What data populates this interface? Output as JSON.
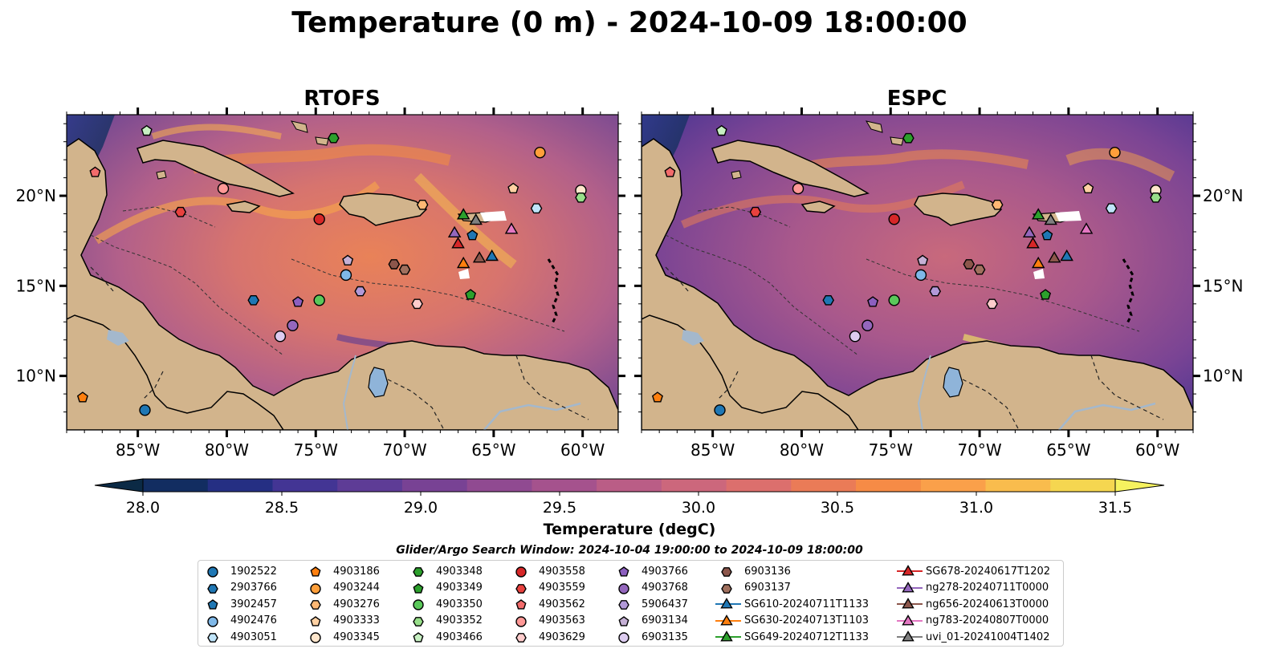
{
  "title": "Temperature (0 m) - 2024-10-09 18:00:00",
  "panels": [
    {
      "title": "RTOFS"
    },
    {
      "title": "ESPC"
    }
  ],
  "map": {
    "lon_range": [
      -89,
      -58
    ],
    "lat_range": [
      7,
      24.5
    ],
    "x_ticks": [
      {
        "lon": -85,
        "label": "85°W"
      },
      {
        "lon": -80,
        "label": "80°W"
      },
      {
        "lon": -75,
        "label": "75°W"
      },
      {
        "lon": -70,
        "label": "70°W"
      },
      {
        "lon": -65,
        "label": "65°W"
      },
      {
        "lon": -60,
        "label": "60°W"
      }
    ],
    "y_ticks": [
      {
        "lat": 20,
        "label": "20°N"
      },
      {
        "lat": 15,
        "label": "15°N"
      },
      {
        "lat": 10,
        "label": "10°N"
      }
    ],
    "colors": {
      "ocean_warm": "#e08060",
      "ocean_mid": "#a4608c",
      "ocean_cool": "#4a3e8f",
      "ocean_deep": "#12264a",
      "land": "#d2b48c",
      "lake": "#8fb4d9",
      "river": "#a4b8cc"
    }
  },
  "colorbar": {
    "label": "Temperature (degC)",
    "ticks": [
      "28.0",
      "28.5",
      "29.0",
      "29.5",
      "30.0",
      "30.5",
      "31.0",
      "31.5"
    ],
    "min": 28.0,
    "max": 31.5,
    "colors": [
      "#0b2a45",
      "#122d61",
      "#252f83",
      "#433594",
      "#5e3c96",
      "#784294",
      "#904a91",
      "#a5528d",
      "#ba5d86",
      "#cc677c",
      "#dc6f6d",
      "#ea7b57",
      "#f68b46",
      "#faa04a",
      "#f9bc4d",
      "#f5d650",
      "#f6f25f"
    ]
  },
  "search_window": "Glider/Argo Search Window: 2024-10-04 19:00:00 to 2024-10-09 18:00:00",
  "platforms": [
    {
      "name": "1902522",
      "shape": "circle",
      "color": "#1f77b4",
      "lon": -84.6,
      "lat": 8.1
    },
    {
      "name": "2903766",
      "shape": "hexagon",
      "color": "#1f77b4",
      "lon": -78.5,
      "lat": 14.2
    },
    {
      "name": "3902457",
      "shape": "pentagon",
      "color": "#1f77b4",
      "lon": -66.2,
      "lat": 17.8
    },
    {
      "name": "4902476",
      "shape": "circle",
      "color": "#7fb8e8",
      "lon": -73.3,
      "lat": 15.6
    },
    {
      "name": "4903051",
      "shape": "hexagon",
      "color": "#bfe4fa",
      "lon": -62.6,
      "lat": 19.3
    },
    {
      "name": "4903186",
      "shape": "pentagon",
      "color": "#ff7f0e",
      "lon": -88.1,
      "lat": 8.8
    },
    {
      "name": "4903244",
      "shape": "circle",
      "color": "#ff9f3a",
      "lon": -62.4,
      "lat": 22.4
    },
    {
      "name": "4903276",
      "shape": "hexagon",
      "color": "#ffb874",
      "lon": -69.0,
      "lat": 19.5
    },
    {
      "name": "4903333",
      "shape": "pentagon",
      "color": "#ffd1a3",
      "lon": -63.9,
      "lat": 20.4
    },
    {
      "name": "4903345",
      "shape": "circle",
      "color": "#ffe6cc",
      "lon": -60.1,
      "lat": 20.3
    },
    {
      "name": "4903348",
      "shape": "hexagon",
      "color": "#2ca02c",
      "lon": -74.0,
      "lat": 23.2
    },
    {
      "name": "4903349",
      "shape": "pentagon",
      "color": "#2ca02c",
      "lon": -66.3,
      "lat": 14.5
    },
    {
      "name": "4903350",
      "shape": "circle",
      "color": "#5ac85a",
      "lon": -74.8,
      "lat": 14.2
    },
    {
      "name": "4903352",
      "shape": "hexagon",
      "color": "#98df8a",
      "lon": -60.1,
      "lat": 19.9
    },
    {
      "name": "4903466",
      "shape": "pentagon",
      "color": "#c7f0c2",
      "lon": -84.5,
      "lat": 23.6
    },
    {
      "name": "4903558",
      "shape": "circle",
      "color": "#d62728",
      "lon": -74.8,
      "lat": 18.7
    },
    {
      "name": "4903559",
      "shape": "hexagon",
      "color": "#e8413e",
      "lon": -82.6,
      "lat": 19.1
    },
    {
      "name": "4903562",
      "shape": "pentagon",
      "color": "#f26b6b",
      "lon": -87.4,
      "lat": 21.3
    },
    {
      "name": "4903563",
      "shape": "circle",
      "color": "#ff9896",
      "lon": -80.2,
      "lat": 20.4
    },
    {
      "name": "4903629",
      "shape": "hexagon",
      "color": "#ffcccc",
      "lon": -69.3,
      "lat": 14.0
    },
    {
      "name": "4903766",
      "shape": "pentagon",
      "color": "#8c5fbf",
      "lon": -76.0,
      "lat": 14.1
    },
    {
      "name": "4903768",
      "shape": "circle",
      "color": "#9467bd",
      "lon": -76.3,
      "lat": 12.8
    },
    {
      "name": "5906437",
      "shape": "hexagon",
      "color": "#b299d8",
      "lon": -72.5,
      "lat": 14.7
    },
    {
      "name": "6903134",
      "shape": "pentagon",
      "color": "#c5b0d5",
      "lon": -73.2,
      "lat": 16.4
    },
    {
      "name": "6903135",
      "shape": "circle",
      "color": "#ddccf0",
      "lon": -77.0,
      "lat": 12.2
    },
    {
      "name": "6903136",
      "shape": "hexagon",
      "color": "#8c564b",
      "lon": -70.6,
      "lat": 16.2
    },
    {
      "name": "6903137",
      "shape": "hexagon",
      "color": "#a0705e",
      "lon": -70.0,
      "lat": 15.9
    },
    {
      "name": "SG610-20240711T1133",
      "shape": "triangle",
      "color": "#1f77b4",
      "lon": -65.1,
      "lat": 16.6,
      "line": true
    },
    {
      "name": "SG630-20240713T1103",
      "shape": "triangle",
      "color": "#ff7f0e",
      "lon": -66.7,
      "lat": 16.2,
      "line": true
    },
    {
      "name": "SG649-20240712T1133",
      "shape": "triangle",
      "color": "#2ca02c",
      "lon": -66.7,
      "lat": 18.9,
      "line": true
    },
    {
      "name": "SG678-20240617T1202",
      "shape": "triangle",
      "color": "#d62728",
      "lon": -67.0,
      "lat": 17.3,
      "line": true
    },
    {
      "name": "ng278-20240711T0000",
      "shape": "triangle",
      "color": "#9467bd",
      "lon": -67.2,
      "lat": 17.9,
      "line": true
    },
    {
      "name": "ng656-20240613T0000",
      "shape": "triangle",
      "color": "#8c564b",
      "lon": -65.8,
      "lat": 16.5,
      "line": true
    },
    {
      "name": "ng783-20240807T0000",
      "shape": "triangle",
      "color": "#e377c2",
      "lon": -64.0,
      "lat": 18.1,
      "line": true
    },
    {
      "name": "uvi_01-20241004T1402",
      "shape": "triangle",
      "color": "#7f7f7f",
      "lon": -66.0,
      "lat": 18.6,
      "line": true
    }
  ]
}
